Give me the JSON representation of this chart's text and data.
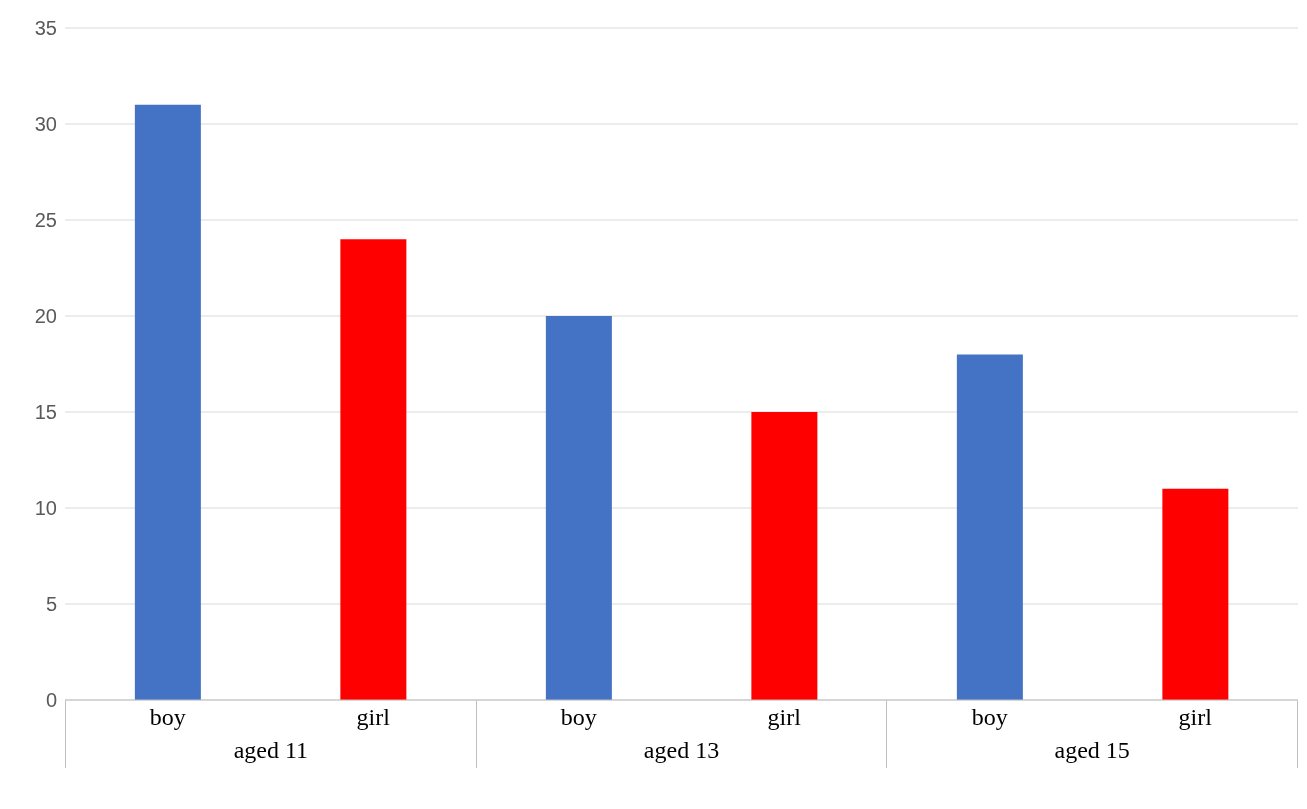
{
  "chart_data": {
    "type": "bar",
    "categories": [
      "boy",
      "girl",
      "boy",
      "girl",
      "boy",
      "girl"
    ],
    "values": [
      31,
      24,
      20,
      15,
      18,
      11
    ],
    "colors": [
      "#4472c4",
      "#ff0000",
      "#4472c4",
      "#ff0000",
      "#4472c4",
      "#ff0000"
    ],
    "ylim": [
      0,
      35
    ],
    "yticks": [
      0,
      5,
      10,
      15,
      20,
      25,
      30,
      35
    ],
    "grid": "y",
    "annotations": [
      "aged 11",
      "aged 13",
      "aged 15"
    ]
  }
}
